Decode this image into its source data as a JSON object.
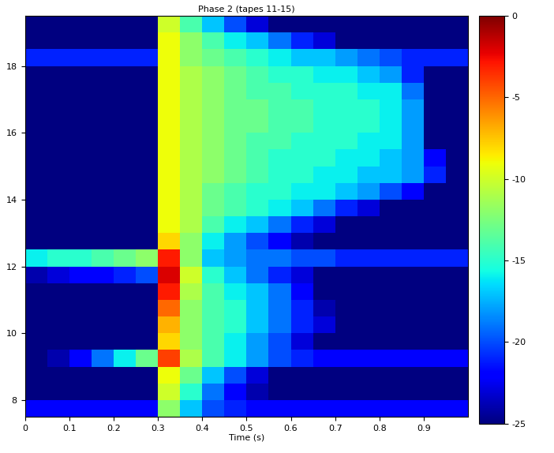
{
  "chart_data": {
    "type": "heatmap",
    "title": "Phase 2 (tapes 11-15)",
    "x_label": "Time (s)",
    "xlim": [
      0,
      1
    ],
    "xticks": [
      0,
      0.1,
      0.2,
      0.3,
      0.4,
      0.5,
      0.6,
      0.7,
      0.8,
      0.9
    ],
    "ylim": [
      7.5,
      19.5
    ],
    "yticks": [
      8,
      10,
      12,
      14,
      16,
      18
    ],
    "x_edges": [
      0,
      0.05,
      0.1,
      0.15,
      0.2,
      0.25,
      0.3,
      0.35,
      0.4,
      0.45,
      0.5,
      0.55,
      0.6,
      0.65,
      0.7,
      0.75,
      0.8,
      0.85,
      0.9,
      0.95,
      1.0
    ],
    "y_edges": [
      7.5,
      8,
      8.5,
      9,
      9.5,
      10,
      10.5,
      11,
      11.5,
      12,
      12.5,
      13,
      13.5,
      14,
      14.5,
      15,
      15.5,
      16,
      16.5,
      17,
      17.5,
      18,
      18.5,
      19,
      19.5
    ],
    "cells": [
      [
        -22,
        -22,
        -22,
        -22,
        -22,
        -22,
        -12,
        -17,
        -20,
        -21,
        -22,
        -22,
        -22,
        -22,
        -22,
        -22,
        -22,
        -22,
        -22,
        -22
      ],
      [
        -25,
        -25,
        -25,
        -25,
        -25,
        -25,
        -10,
        -15,
        -19,
        -22,
        -24,
        -25,
        -25,
        -25,
        -25,
        -25,
        -25,
        -25,
        -25,
        -25
      ],
      [
        -25,
        -25,
        -25,
        -25,
        -25,
        -25,
        -9,
        -13,
        -17,
        -20,
        -23,
        -25,
        -25,
        -25,
        -25,
        -25,
        -25,
        -25,
        -25,
        -25
      ],
      [
        -25,
        -24,
        -22,
        -19,
        -16,
        -13,
        -4,
        -11,
        -14,
        -16,
        -18,
        -20,
        -21,
        -22,
        -22,
        -22,
        -22,
        -22,
        -22,
        -22
      ],
      [
        -25,
        -25,
        -25,
        -25,
        -25,
        -25,
        -8,
        -12,
        -14,
        -16,
        -18,
        -20,
        -23,
        -25,
        -25,
        -25,
        -25,
        -25,
        -25,
        -25
      ],
      [
        -25,
        -25,
        -25,
        -25,
        -25,
        -25,
        -7,
        -12,
        -14,
        -15,
        -17,
        -19,
        -21,
        -23,
        -25,
        -25,
        -25,
        -25,
        -25,
        -25
      ],
      [
        -25,
        -25,
        -25,
        -25,
        -25,
        -25,
        -5,
        -12,
        -14,
        -15,
        -17,
        -19,
        -21,
        -24,
        -25,
        -25,
        -25,
        -25,
        -25,
        -25
      ],
      [
        -25,
        -25,
        -25,
        -25,
        -25,
        -25,
        -3,
        -11,
        -14,
        -16,
        -17,
        -19,
        -22,
        -25,
        -25,
        -25,
        -25,
        -25,
        -25,
        -25
      ],
      [
        -24,
        -23,
        -22,
        -22,
        -21,
        -20,
        -2,
        -10,
        -15,
        -17,
        -19,
        -21,
        -23,
        -25,
        -25,
        -25,
        -25,
        -25,
        -25,
        -25
      ],
      [
        -16,
        -15,
        -15,
        -14,
        -13,
        -12,
        -3,
        -12,
        -17,
        -18,
        -19,
        -19,
        -20,
        -20,
        -21,
        -21,
        -21,
        -21,
        -21,
        -21
      ],
      [
        -25,
        -25,
        -25,
        -25,
        -25,
        -25,
        -8,
        -12,
        -16,
        -18,
        -20,
        -22,
        -24,
        -25,
        -25,
        -25,
        -25,
        -25,
        -25,
        -25
      ],
      [
        -25,
        -25,
        -25,
        -25,
        -25,
        -25,
        -9,
        -11,
        -14,
        -16,
        -17,
        -19,
        -21,
        -23,
        -25,
        -25,
        -25,
        -25,
        -25,
        -25
      ],
      [
        -25,
        -25,
        -25,
        -25,
        -25,
        -25,
        -9,
        -11,
        -13,
        -14,
        -15,
        -16,
        -17,
        -19,
        -21,
        -23,
        -25,
        -25,
        -25,
        -25
      ],
      [
        -25,
        -25,
        -25,
        -25,
        -25,
        -25,
        -9,
        -11,
        -13,
        -14,
        -15,
        -15,
        -16,
        -16,
        -17,
        -18,
        -20,
        -22,
        -25,
        -25
      ],
      [
        -25,
        -25,
        -25,
        -25,
        -25,
        -25,
        -9,
        -11,
        -12,
        -13,
        -14,
        -15,
        -15,
        -16,
        -16,
        -17,
        -17,
        -18,
        -21,
        -25
      ],
      [
        -25,
        -25,
        -25,
        -25,
        -25,
        -25,
        -9,
        -11,
        -12,
        -13,
        -14,
        -15,
        -15,
        -15,
        -16,
        -16,
        -17,
        -18,
        -22,
        -25
      ],
      [
        -25,
        -25,
        -25,
        -25,
        -25,
        -25,
        -9,
        -11,
        -12,
        -13,
        -14,
        -14,
        -15,
        -15,
        -15,
        -16,
        -16,
        -18,
        -25,
        -25
      ],
      [
        -25,
        -25,
        -25,
        -25,
        -25,
        -25,
        -9,
        -11,
        -12,
        -13,
        -13,
        -14,
        -14,
        -15,
        -15,
        -15,
        -16,
        -18,
        -25,
        -25
      ],
      [
        -25,
        -25,
        -25,
        -25,
        -25,
        -25,
        -9,
        -11,
        -12,
        -13,
        -13,
        -14,
        -14,
        -15,
        -15,
        -15,
        -16,
        -18,
        -25,
        -25
      ],
      [
        -25,
        -25,
        -25,
        -25,
        -25,
        -25,
        -9,
        -11,
        -12,
        -13,
        -14,
        -14,
        -15,
        -15,
        -15,
        -16,
        -16,
        -19,
        -25,
        -25
      ],
      [
        -25,
        -25,
        -25,
        -25,
        -25,
        -25,
        -9,
        -11,
        -12,
        -13,
        -14,
        -15,
        -15,
        -16,
        -16,
        -17,
        -18,
        -21,
        -25,
        -25
      ],
      [
        -21,
        -21,
        -21,
        -21,
        -21,
        -21,
        -9,
        -12,
        -13,
        -14,
        -15,
        -16,
        -17,
        -17,
        -18,
        -19,
        -20,
        -21,
        -21,
        -21
      ],
      [
        -25,
        -25,
        -25,
        -25,
        -25,
        -25,
        -9,
        -12,
        -14,
        -16,
        -17,
        -19,
        -21,
        -23,
        -25,
        -25,
        -25,
        -25,
        -25,
        -25
      ],
      [
        -25,
        -25,
        -25,
        -25,
        -25,
        -25,
        -10,
        -14,
        -17,
        -20,
        -23,
        -25,
        -25,
        -25,
        -25,
        -25,
        -25,
        -25,
        -25,
        -25
      ]
    ],
    "colorbar_lim": [
      -25,
      0
    ],
    "colorbar_ticks": [
      0,
      -5,
      -10,
      -15,
      -20,
      -25
    ]
  }
}
